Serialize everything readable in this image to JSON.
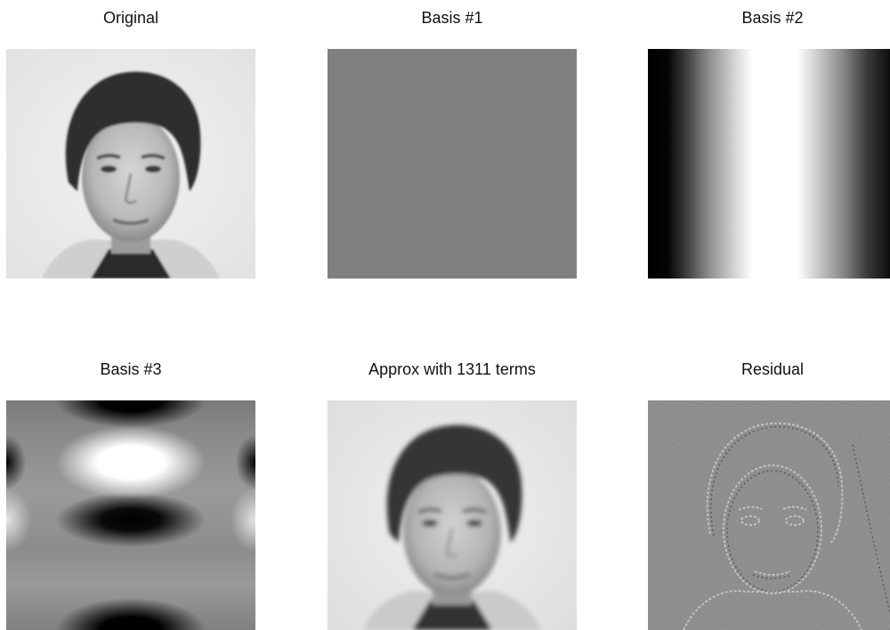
{
  "panels": [
    {
      "title": "Original"
    },
    {
      "title": "Basis #1"
    },
    {
      "title": "Basis #2"
    },
    {
      "title": "Basis #3"
    },
    {
      "title": "Approx with 1311 terms"
    },
    {
      "title": "Residual"
    }
  ]
}
